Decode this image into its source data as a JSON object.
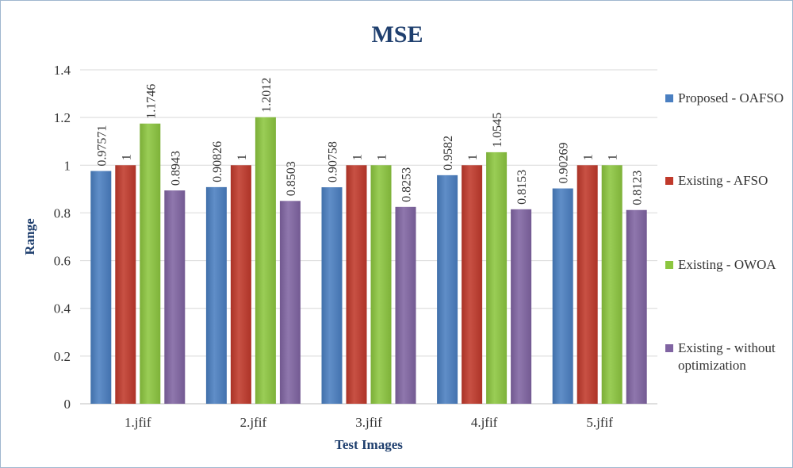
{
  "chart_data": {
    "type": "bar",
    "title": "MSE",
    "xlabel": "Test Images",
    "ylabel": "Range",
    "ylim": [
      0,
      1.4
    ],
    "yticks": [
      "0",
      "0.2",
      "0.4",
      "0.6",
      "0.8",
      "1",
      "1.2",
      "1.4"
    ],
    "grid": true,
    "legend_position": "right",
    "categories": [
      "1.jfif",
      "2.jfif",
      "3.jfif",
      "4.jfif",
      "5.jfif"
    ],
    "series": [
      {
        "name": "Proposed - OAFSO",
        "color": "#4a7fc1",
        "values": [
          0.97571,
          0.90826,
          0.90758,
          0.9582,
          0.90269
        ],
        "labels": [
          "0.97571",
          "0.90826",
          "0.90758",
          "0.9582",
          "0.90269"
        ]
      },
      {
        "name": "Existing - AFSO",
        "color": "#c0392b",
        "values": [
          1,
          1,
          1,
          1,
          1
        ],
        "labels": [
          "1",
          "1",
          "1",
          "1",
          "1"
        ]
      },
      {
        "name": "Existing - OWOA",
        "color": "#8cc63f",
        "values": [
          1.1746,
          1.2012,
          1,
          1.0545,
          1
        ],
        "labels": [
          "1.1746",
          "1.2012",
          "1",
          "1.0545",
          "1"
        ]
      },
      {
        "name": "Existing - without optimization",
        "color": "#8064a2",
        "values": [
          0.8943,
          0.8503,
          0.8253,
          0.8153,
          0.8123
        ],
        "labels": [
          "0.8943",
          "0.8503",
          "0.8253",
          "0.8153",
          "0.8123"
        ]
      }
    ]
  }
}
